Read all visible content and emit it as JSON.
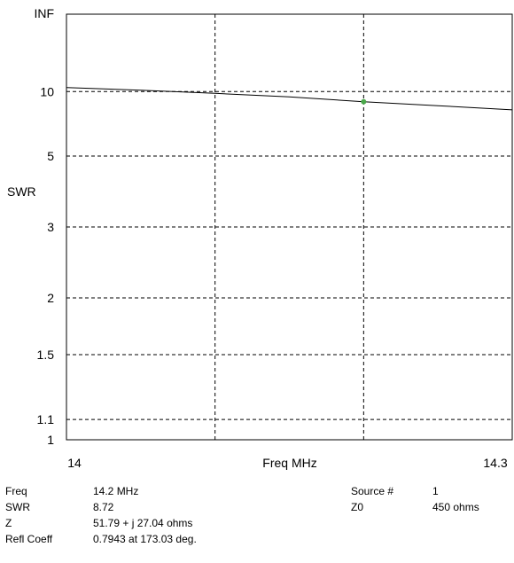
{
  "chart_data": {
    "type": "line",
    "ylabel": "SWR",
    "xlabel": "Freq MHz",
    "x_tick_labels": [
      "14",
      "14.3"
    ],
    "x_range": [
      14,
      14.3
    ],
    "y_scale": "reflection-coefficient (SWR chart)",
    "y_tick_labels": [
      "INF",
      "10",
      "5",
      "3",
      "2",
      "1.5",
      "1.1",
      "1"
    ],
    "grid": "dashed",
    "series": [
      {
        "color": "#000000",
        "x": [
          14.0,
          14.05,
          14.1,
          14.15,
          14.2,
          14.25,
          14.3
        ],
        "y": [
          10.6,
          10.2,
          9.75,
          9.3,
          8.72,
          8.3,
          7.9
        ]
      }
    ],
    "marker": {
      "x": 14.2,
      "y": 8.72,
      "color": "#4aa84a"
    }
  },
  "readout": {
    "freq_label": "Freq",
    "freq_value": "14.2 MHz",
    "swr_label": "SWR",
    "swr_value": "8.72",
    "z_label": "Z",
    "z_value": "51.79 + j 27.04 ohms",
    "refl_label": "Refl Coeff",
    "refl_value": "0.7943 at 173.03 deg.",
    "source_label": "Source #",
    "source_value": "1",
    "z0_label": "Z0",
    "z0_value": "450 ohms"
  }
}
